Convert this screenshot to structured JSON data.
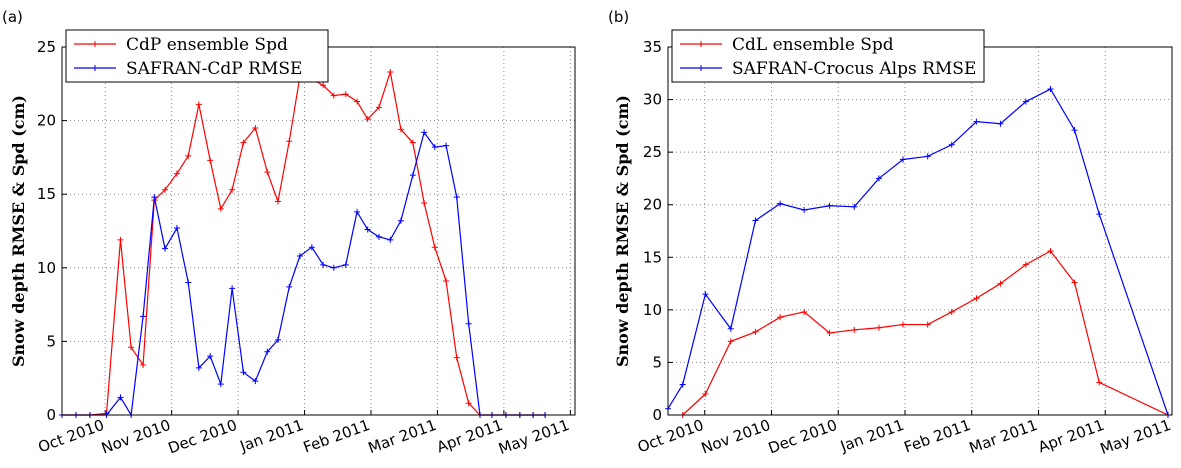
{
  "chart_data": [
    {
      "type": "line",
      "label": "(a)",
      "y_label": "Snow depth RMSE & Spd (cm)",
      "x": [
        -0.65,
        -0.44,
        -0.23,
        0.02,
        0.23,
        0.39,
        0.57,
        0.74,
        0.9,
        1.08,
        1.25,
        1.41,
        1.58,
        1.74,
        1.91,
        2.08,
        2.26,
        2.44,
        2.6,
        2.77,
        2.93,
        3.11,
        3.28,
        3.44,
        3.62,
        3.79,
        3.95,
        4.12,
        4.29,
        4.45,
        4.63,
        4.8,
        4.96,
        5.13,
        5.29,
        5.47,
        5.64,
        5.82,
        6.03,
        6.24,
        6.44,
        6.62
      ],
      "series": [
        {
          "name": "CdP ensemble Spd",
          "color": "#ff0000",
          "values": [
            0,
            0,
            0,
            0.1,
            11.9,
            4.6,
            3.4,
            14.6,
            15.3,
            16.4,
            17.6,
            21.1,
            17.3,
            14.0,
            15.3,
            18.5,
            19.5,
            16.5,
            14.5,
            18.6,
            23.0,
            22.8,
            22.4,
            21.7,
            21.8,
            21.3,
            20.1,
            20.9,
            23.3,
            19.4,
            18.5,
            14.4,
            11.4,
            9.1,
            3.9,
            0.8,
            0,
            0,
            0,
            0,
            0,
            0
          ]
        },
        {
          "name": "SAFRAN-CdP RMSE",
          "color": "#0000ff",
          "values": [
            0,
            0,
            0,
            0,
            1.2,
            0,
            6.7,
            14.8,
            11.3,
            12.7,
            9.0,
            3.2,
            4.0,
            2.1,
            8.6,
            2.9,
            2.3,
            4.3,
            5.1,
            8.7,
            10.8,
            11.4,
            10.2,
            10.0,
            10.2,
            13.8,
            12.6,
            12.1,
            11.9,
            13.2,
            16.3,
            19.2,
            18.2,
            18.3,
            14.8,
            6.2,
            0,
            0,
            0,
            0,
            0,
            0
          ]
        }
      ],
      "xlim": [
        -0.65,
        7.07
      ],
      "xticks": [
        {
          "value": 0,
          "label": "Oct 2010"
        },
        {
          "value": 1,
          "label": "Nov 2010"
        },
        {
          "value": 2,
          "label": "Dec 2010"
        },
        {
          "value": 3,
          "label": "Jan 2011"
        },
        {
          "value": 4,
          "label": "Feb 2011"
        },
        {
          "value": 5,
          "label": "Mar 2011"
        },
        {
          "value": 6,
          "label": "Apr 2011"
        },
        {
          "value": 7,
          "label": "May 2011"
        }
      ],
      "ylim": [
        0,
        25
      ],
      "yticks": [
        0,
        5,
        10,
        15,
        20,
        25
      ],
      "grid": true,
      "legend": "upper left"
    },
    {
      "type": "line",
      "label": "(b)",
      "y_label": "Snow depth RMSE & Spd (cm)",
      "x": [
        -0.55,
        -0.33,
        0.01,
        0.39,
        0.76,
        1.13,
        1.49,
        1.87,
        2.24,
        2.61,
        2.97,
        3.34,
        3.7,
        4.07,
        4.43,
        4.81,
        5.18,
        5.54,
        5.91,
        6.94
      ],
      "series": [
        {
          "name": "CdL ensemble Spd",
          "color": "#ff0000",
          "values": [
            null,
            0,
            2.0,
            7.0,
            7.9,
            9.3,
            9.8,
            7.8,
            8.1,
            8.3,
            8.6,
            8.6,
            9.8,
            11.1,
            12.5,
            14.3,
            15.6,
            12.6,
            3.1,
            0
          ]
        },
        {
          "name": "SAFRAN-Crocus Alps RMSE",
          "color": "#0000ff",
          "values": [
            0.6,
            2.9,
            11.5,
            8.2,
            18.5,
            20.1,
            19.5,
            19.9,
            19.8,
            22.5,
            24.3,
            24.6,
            25.7,
            27.9,
            27.7,
            29.8,
            31.0,
            27.1,
            19.1,
            0
          ]
        }
      ],
      "xlim": [
        -0.55,
        7.0
      ],
      "xticks": [
        {
          "value": 0,
          "label": "Oct 2010"
        },
        {
          "value": 1,
          "label": "Nov 2010"
        },
        {
          "value": 2,
          "label": "Dec 2010"
        },
        {
          "value": 3,
          "label": "Jan 2011"
        },
        {
          "value": 4,
          "label": "Feb 2011"
        },
        {
          "value": 5,
          "label": "Mar 2011"
        },
        {
          "value": 6,
          "label": "Apr 2011"
        },
        {
          "value": 7,
          "label": "May 2011"
        }
      ],
      "ylim": [
        0,
        35
      ],
      "yticks": [
        0,
        5,
        10,
        15,
        20,
        25,
        30,
        35
      ],
      "grid": true,
      "legend": "upper left"
    }
  ]
}
